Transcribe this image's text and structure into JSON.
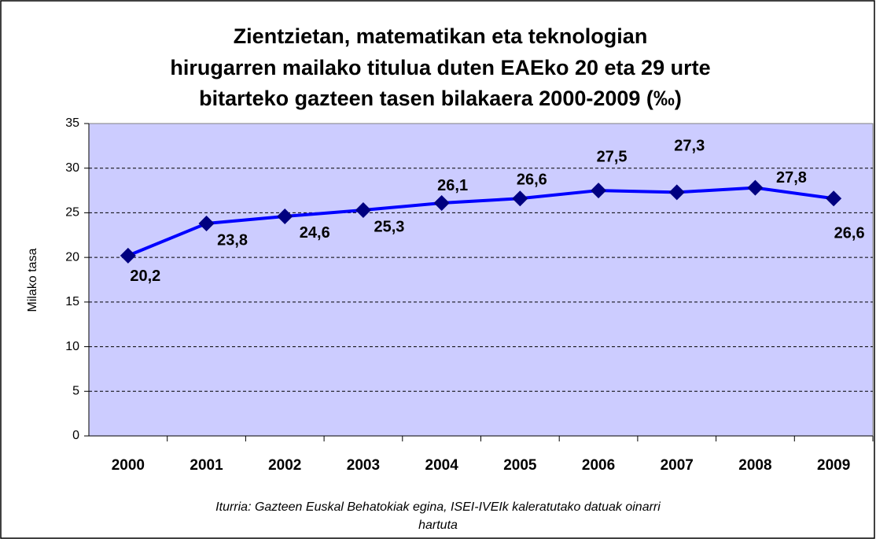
{
  "chart_data": {
    "type": "line",
    "title": [
      "Zientzietan, matematikan eta teknologian",
      "hirugarren mailako titulua duten EAEko 20 eta 29 urte",
      "bitarteko gazteen tasen bilakaera 2000-2009  (‰)"
    ],
    "y_label": "Milako tasa",
    "source": [
      "Iturria: Gazteen Euskal Behatokiak egina, ISEI-IVEIk kaleratutako datuak oinarri",
      "hartuta"
    ],
    "categories": [
      "2000",
      "2001",
      "2002",
      "2003",
      "2004",
      "2005",
      "2006",
      "2007",
      "2008",
      "2009"
    ],
    "series": [
      {
        "color": "#0000ff",
        "marker_color": "#000080",
        "values": [
          20.2,
          23.8,
          24.6,
          25.3,
          26.1,
          26.6,
          27.5,
          27.3,
          27.8,
          26.6
        ],
        "value_labels": [
          "20,2",
          "23,8",
          "24,6",
          "25,3",
          "26,1",
          "26,6",
          "27,5",
          "27,3",
          "27,8",
          "26,6"
        ]
      }
    ],
    "ylim": [
      0,
      35
    ],
    "yticks": [
      0,
      5,
      10,
      15,
      20,
      25,
      30,
      35
    ],
    "grid": true,
    "plot_background": "#ccccff"
  }
}
